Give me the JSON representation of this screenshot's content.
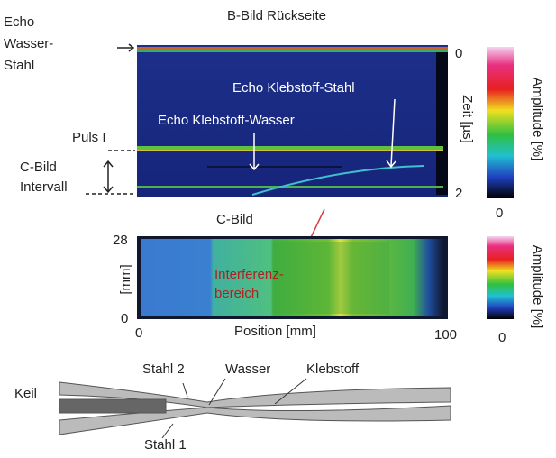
{
  "b_scan": {
    "title": "B-Bild Rückseite",
    "echo_water_steel": [
      "Echo",
      "Wasser-",
      "Stahl"
    ],
    "echo_adhesive_steel": "Echo Klebstoff-Stahl",
    "echo_adhesive_water": "Echo Klebstoff-Wasser",
    "pulse": "Puls I",
    "c_interval": [
      "C-Bild",
      "Intervall"
    ],
    "axis_label": "Zeit [µs]",
    "axis_ticks": [
      0,
      2
    ],
    "colorbar_label": "Amplitude [%]",
    "colorbar_min": 0
  },
  "c_scan": {
    "title": "C-Bild",
    "y_label": "[mm]",
    "y_ticks": [
      28,
      0
    ],
    "x_label": "Position [mm]",
    "x_ticks": [
      0,
      100
    ],
    "region": [
      "Interferenz-",
      "bereich"
    ],
    "colorbar_label": "Amplitude [%]",
    "colorbar_min": 0
  },
  "diagram": {
    "labels": [
      "Keil",
      "Stahl 2",
      "Wasser",
      "Klebstoff",
      "Stahl 1"
    ]
  }
}
